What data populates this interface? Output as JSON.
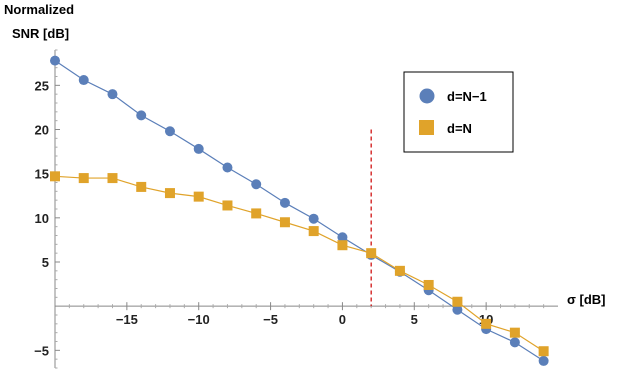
{
  "chart_data": {
    "type": "line",
    "title": "",
    "ylabel_line1": "Normalized",
    "ylabel_line2": "SNR [dB]",
    "xlabel": "σ [dB]",
    "xlim": [
      -20,
      15
    ],
    "ylim": [
      -7,
      29
    ],
    "x_ticks": [
      -15,
      -10,
      -5,
      0,
      5,
      10
    ],
    "x_tick_labels": [
      "−15",
      "−10",
      "−5",
      "0",
      "5",
      "10"
    ],
    "y_ticks": [
      -5,
      5,
      10,
      15,
      20,
      25
    ],
    "y_tick_labels": [
      "−5",
      "5",
      "10",
      "15",
      "20",
      "25"
    ],
    "grid": false,
    "legend_position": "top-right",
    "reference_line": {
      "x": 2,
      "style": "dashed",
      "color": "#cc0000"
    },
    "series": [
      {
        "name": "d=N−1",
        "marker": "circle",
        "color": "#5b7fb9",
        "x": [
          -20,
          -18,
          -16,
          -14,
          -12,
          -10,
          -8,
          -6,
          -4,
          -2,
          0,
          2,
          4,
          6,
          8,
          10,
          12,
          14
        ],
        "y": [
          27.8,
          25.6,
          24.0,
          21.6,
          19.8,
          17.8,
          15.7,
          13.8,
          11.7,
          9.9,
          7.8,
          5.8,
          3.9,
          1.8,
          -0.4,
          -2.6,
          -4.1,
          -6.2
        ]
      },
      {
        "name": "d=N",
        "marker": "square",
        "color": "#e0a32a",
        "x": [
          -20,
          -18,
          -16,
          -14,
          -12,
          -10,
          -8,
          -6,
          -4,
          -2,
          0,
          2,
          4,
          6,
          8,
          10,
          12,
          14
        ],
        "y": [
          14.7,
          14.5,
          14.5,
          13.5,
          12.8,
          12.4,
          11.4,
          10.5,
          9.5,
          8.5,
          6.9,
          6.0,
          4.0,
          2.4,
          0.5,
          -2.0,
          -3.0,
          -5.1
        ]
      }
    ]
  }
}
